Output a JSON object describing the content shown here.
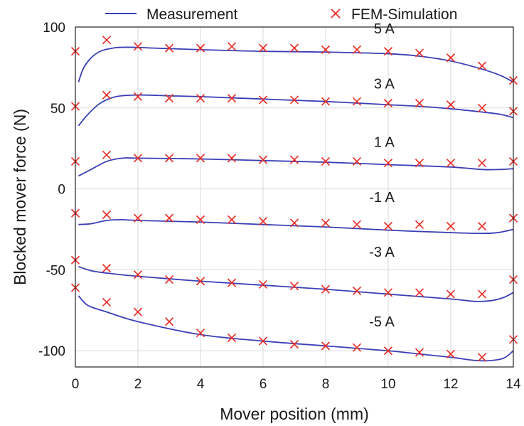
{
  "chart_data": {
    "type": "line",
    "title": "",
    "xlabel": "Mover position (mm)",
    "ylabel": "Blocked mover force (N)",
    "xlim": [
      0,
      14
    ],
    "ylim": [
      -110,
      100
    ],
    "xticks": [
      0,
      2,
      4,
      6,
      8,
      10,
      12,
      14
    ],
    "yticks": [
      -100,
      -50,
      0,
      50,
      100
    ],
    "grid": true,
    "legend": {
      "placement": "top",
      "entries": [
        {
          "name": "Measurement",
          "marker": "line"
        },
        {
          "name": "FEM-Simulation",
          "marker": "x"
        }
      ]
    },
    "colors": {
      "measurement": "#3a3fb5",
      "simulation": "#e8302a"
    },
    "series": [
      {
        "name": "5 A",
        "label_pos": [
          10.2,
          96
        ],
        "measurement": {
          "x": [
            0.1,
            0.3,
            0.7,
            1.2,
            1.7,
            2.5,
            4,
            6,
            8,
            10,
            11,
            12,
            13,
            13.6,
            14
          ],
          "y": [
            66,
            76,
            84,
            87,
            87.5,
            87,
            86,
            85,
            84.5,
            83.5,
            82,
            79,
            74,
            70,
            66
          ]
        },
        "simulation": {
          "x": [
            0,
            1,
            2,
            3,
            4,
            5,
            6,
            7,
            8,
            9,
            10,
            11,
            12,
            13,
            14
          ],
          "y": [
            85,
            92,
            88,
            87,
            87,
            88,
            87,
            87,
            86,
            86,
            85,
            84,
            81,
            76,
            67
          ]
        }
      },
      {
        "name": "3 A",
        "label_pos": [
          10.2,
          62
        ],
        "measurement": {
          "x": [
            0.1,
            0.4,
            0.8,
            1.3,
            2,
            3,
            4,
            6,
            8,
            10,
            11,
            12,
            13,
            13.6,
            14
          ],
          "y": [
            39,
            46,
            53,
            57,
            58,
            57.5,
            57,
            55.5,
            54,
            52,
            51,
            49.5,
            47.5,
            46,
            44
          ]
        },
        "simulation": {
          "x": [
            0,
            1,
            2,
            3,
            4,
            5,
            6,
            7,
            8,
            9,
            10,
            11,
            12,
            13,
            14
          ],
          "y": [
            51,
            58,
            57,
            56,
            56,
            56,
            55,
            55,
            54,
            54,
            53,
            53,
            52,
            50,
            48
          ]
        }
      },
      {
        "name": "1 A",
        "label_pos": [
          10.2,
          26
        ],
        "measurement": {
          "x": [
            0.1,
            0.5,
            1,
            1.5,
            2,
            4,
            6,
            8,
            10,
            12,
            13,
            13.6,
            14
          ],
          "y": [
            8,
            12,
            17,
            19,
            19,
            18.5,
            17.5,
            16.5,
            15,
            13.5,
            12,
            12,
            12.5
          ]
        },
        "simulation": {
          "x": [
            0,
            1,
            2,
            3,
            4,
            5,
            6,
            7,
            8,
            9,
            10,
            11,
            12,
            13,
            14
          ],
          "y": [
            17,
            21,
            19,
            19,
            19,
            19,
            18,
            18,
            17,
            17,
            16,
            16,
            16,
            16,
            17
          ]
        }
      },
      {
        "name": "-1 A",
        "label_pos": [
          10.2,
          -8
        ],
        "measurement": {
          "x": [
            0.1,
            0.5,
            1,
            1.5,
            2,
            4,
            6,
            8,
            10,
            12,
            13,
            13.5,
            14
          ],
          "y": [
            -22,
            -21.5,
            -19.5,
            -19,
            -19.5,
            -20.5,
            -22,
            -23.5,
            -25.5,
            -27,
            -27.5,
            -27,
            -25
          ]
        },
        "simulation": {
          "x": [
            0,
            1,
            2,
            3,
            4,
            5,
            6,
            7,
            8,
            9,
            10,
            11,
            12,
            13,
            14
          ],
          "y": [
            -15,
            -16,
            -18,
            -18,
            -19,
            -19,
            -20,
            -21,
            -21,
            -22,
            -23,
            -22,
            -23,
            -23,
            -18
          ]
        }
      },
      {
        "name": "-3 A",
        "label_pos": [
          10.2,
          -42
        ],
        "measurement": {
          "x": [
            0.1,
            0.5,
            1,
            2,
            4,
            6,
            8,
            10,
            12,
            12.8,
            13.3,
            13.7,
            14
          ],
          "y": [
            -48,
            -50.5,
            -52,
            -54,
            -57,
            -59.5,
            -62,
            -65,
            -68,
            -69.5,
            -69,
            -67,
            -64
          ]
        },
        "simulation": {
          "x": [
            0,
            1,
            2,
            3,
            4,
            5,
            6,
            7,
            8,
            9,
            10,
            11,
            12,
            13,
            14
          ],
          "y": [
            -44,
            -49,
            -53,
            -56,
            -57,
            -58,
            -59,
            -60,
            -62,
            -63,
            -64,
            -64,
            -65,
            -65,
            -56
          ]
        }
      },
      {
        "name": "-5 A",
        "label_pos": [
          10.2,
          -85
        ],
        "measurement": {
          "x": [
            0.1,
            0.4,
            1,
            2,
            4,
            6,
            8,
            10,
            11,
            12,
            12.8,
            13.3,
            13.7,
            14
          ],
          "y": [
            -66,
            -72,
            -76,
            -82,
            -90,
            -94,
            -97,
            -100,
            -102,
            -104,
            -106,
            -106,
            -104.5,
            -100
          ]
        },
        "simulation": {
          "x": [
            0,
            1,
            2,
            3,
            4,
            5,
            6,
            7,
            8,
            9,
            10,
            11,
            12,
            13,
            14
          ],
          "y": [
            -61,
            -70,
            -76,
            -82,
            -89,
            -92,
            -94,
            -96,
            -97,
            -98,
            -100,
            -101,
            -102,
            -104,
            -93
          ]
        }
      }
    ]
  }
}
